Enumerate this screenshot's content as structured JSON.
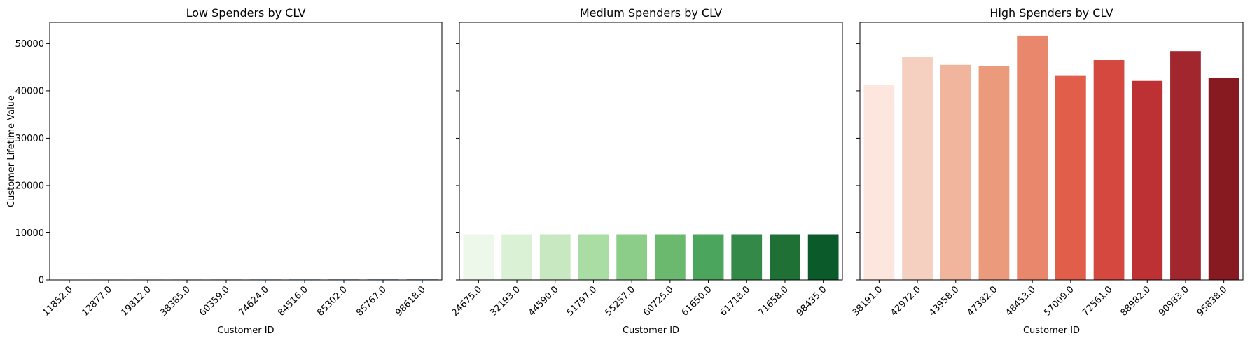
{
  "y_axis_label": "Customer Lifetime Value",
  "chart_data": [
    {
      "type": "bar",
      "title": "Low Spenders by CLV",
      "xlabel": "Customer ID",
      "ylabel": "Customer Lifetime Value",
      "categories": [
        "11852.0",
        "12877.0",
        "19812.0",
        "38385.0",
        "60359.0",
        "74624.0",
        "84516.0",
        "85302.0",
        "85767.0",
        "98618.0"
      ],
      "values": [
        100,
        100,
        100,
        100,
        100,
        100,
        100,
        100,
        100,
        100
      ],
      "ylim": [
        0,
        54500
      ],
      "yticks": [
        0,
        10000,
        20000,
        30000,
        40000,
        50000
      ],
      "colors": [
        "#f7fbff",
        "#e3eef9",
        "#cfe1f2",
        "#b5d4e9",
        "#93c3df",
        "#6daed5",
        "#4b97c9",
        "#2f7ebc",
        "#1864aa",
        "#0a4a90"
      ],
      "grid": false
    },
    {
      "type": "bar",
      "title": "Medium Spenders by CLV",
      "xlabel": "Customer ID",
      "categories": [
        "24675.0",
        "32193.0",
        "44590.0",
        "51797.0",
        "55257.0",
        "60725.0",
        "61650.0",
        "61718.0",
        "71658.0",
        "98435.0"
      ],
      "values": [
        9700,
        9700,
        9700,
        9700,
        9700,
        9700,
        9700,
        9700,
        9700,
        9700
      ],
      "ylim": [
        0,
        54500
      ],
      "colors": [
        "#edf8ea",
        "#dbf1d5",
        "#c7e8c0",
        "#aadda4",
        "#8ccd8a",
        "#6bb96f",
        "#4ba55d",
        "#338a48",
        "#1e7035",
        "#0a5a2a"
      ],
      "grid": false
    },
    {
      "type": "bar",
      "title": "High Spenders by CLV",
      "xlabel": "Customer ID",
      "categories": [
        "38191.0",
        "42972.0",
        "43958.0",
        "47382.0",
        "48453.0",
        "57009.0",
        "72561.0",
        "88982.0",
        "90983.0",
        "95838.0"
      ],
      "values": [
        41200,
        47100,
        45500,
        45200,
        51700,
        43300,
        46500,
        42100,
        48400,
        42700
      ],
      "ylim": [
        0,
        54500
      ],
      "colors": [
        "#fce6de",
        "#f5d0c1",
        "#f1b59d",
        "#ec9a7c",
        "#e8876c",
        "#e05e4a",
        "#d44840",
        "#bd3034",
        "#a1262d",
        "#871a21"
      ],
      "grid": false
    }
  ]
}
